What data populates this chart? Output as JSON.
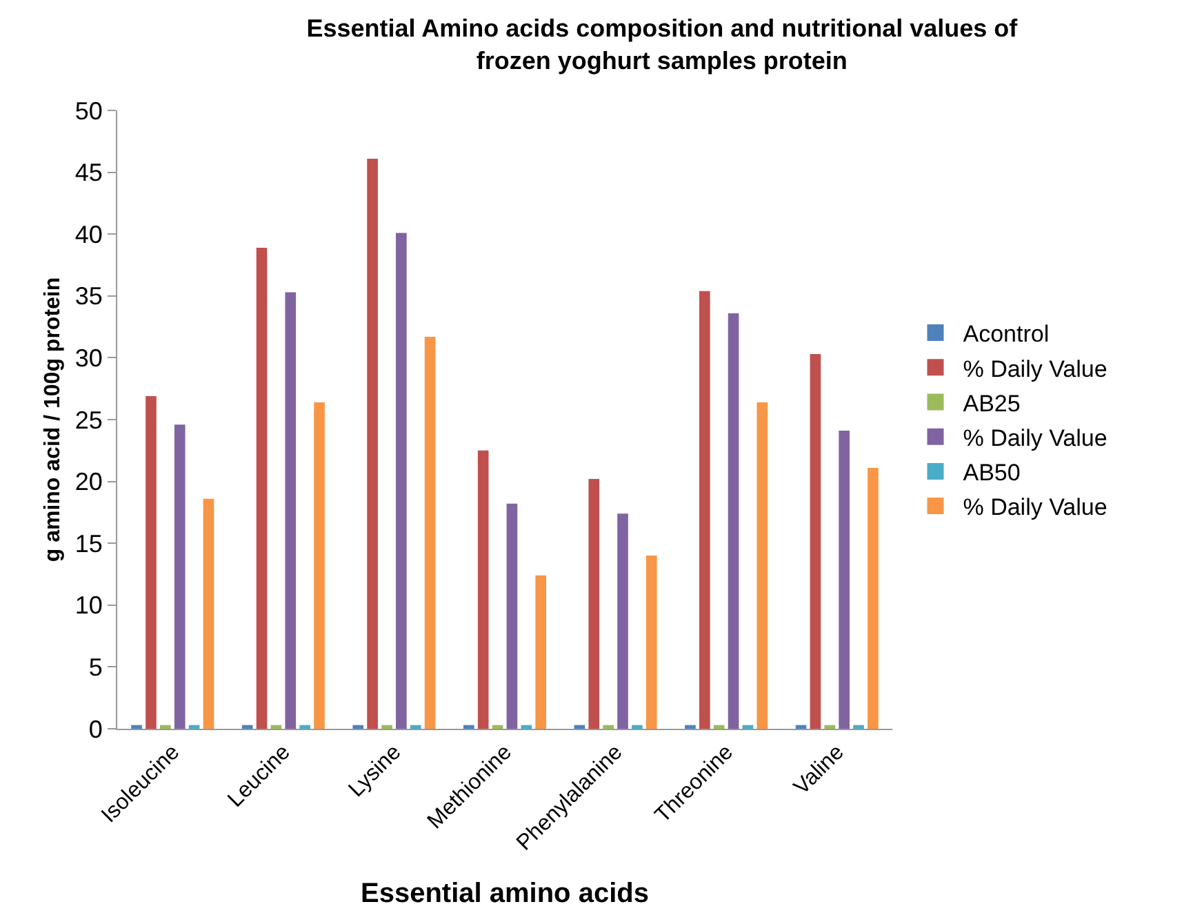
{
  "chart_data": {
    "type": "bar",
    "title": "Essential Amino acids composition and nutritional values of frozen yoghurt samples protein",
    "xlabel": "Essential amino acids",
    "ylabel": "g amino acid / 100g protein",
    "categories": [
      "Isoleucine",
      "Leucine",
      "Lysine",
      "Methionine",
      "Phenylalanine",
      "Threonine",
      "Valine"
    ],
    "series": [
      {
        "name": "Acontrol",
        "color": "#4f81bd",
        "values": [
          0.3,
          0.3,
          0.3,
          0.3,
          0.3,
          0.3,
          0.3
        ]
      },
      {
        "name": "% Daily Value",
        "color": "#c0504d",
        "values": [
          26.9,
          38.9,
          46.1,
          22.5,
          20.2,
          35.4,
          30.3
        ]
      },
      {
        "name": "AB25",
        "color": "#9bbb59",
        "values": [
          0.3,
          0.3,
          0.3,
          0.3,
          0.3,
          0.3,
          0.3
        ]
      },
      {
        "name": "% Daily Value",
        "color": "#8064a2",
        "values": [
          24.6,
          35.3,
          40.1,
          18.2,
          17.4,
          33.6,
          24.1
        ]
      },
      {
        "name": "AB50",
        "color": "#4bacc6",
        "values": [
          0.3,
          0.3,
          0.3,
          0.3,
          0.3,
          0.3,
          0.3
        ]
      },
      {
        "name": "% Daily Value",
        "color": "#f79646",
        "values": [
          18.6,
          26.4,
          31.7,
          12.4,
          14.0,
          26.4,
          21.1
        ]
      }
    ],
    "ylim": [
      0,
      50
    ],
    "yticks": [
      0,
      5,
      10,
      15,
      20,
      25,
      30,
      35,
      40,
      45,
      50
    ],
    "grid": false,
    "legend": "right"
  }
}
